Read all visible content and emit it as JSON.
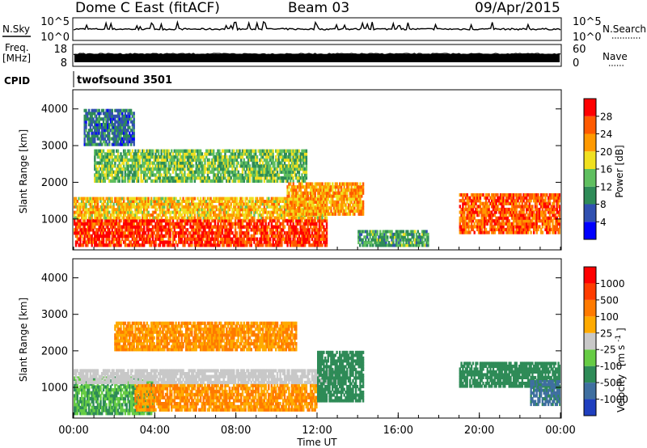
{
  "header": {
    "station": "Dome C East (fitACF)",
    "beam": "Beam 03",
    "date": "09/Apr/2015"
  },
  "nsky_panel": {
    "left_label": "N.Sky",
    "right_label": "N.Search",
    "left_ticks": [
      "10^5",
      "10^0"
    ],
    "right_ticks": [
      "10^5",
      "10^0"
    ]
  },
  "freq_panel": {
    "left_label_1": "Freq.",
    "left_label_2": "[MHz]",
    "right_label": "Nave",
    "left_ticks": [
      "18",
      "8"
    ],
    "right_ticks": [
      "60",
      "0"
    ]
  },
  "cpid": {
    "label": "CPID",
    "value": "twofsound 3501"
  },
  "chart_data": [
    {
      "type": "heatmap",
      "name": "power",
      "ylabel": "Slant Range [km]",
      "xlabel": "",
      "yticks": [
        "1000",
        "2000",
        "3000",
        "4000"
      ],
      "ylim": [
        180,
        4500
      ],
      "xlim": [
        "00:00",
        "24:00"
      ],
      "colorbar": {
        "label": "Power [dB]",
        "ticks": [
          "4",
          "8",
          "12",
          "16",
          "20",
          "24",
          "28"
        ],
        "colors": [
          "#0000ff",
          "#3050b0",
          "#2e8b57",
          "#5fbf5f",
          "#f0e020",
          "#ff9900",
          "#ff5a00",
          "#ff0000"
        ]
      },
      "regions": [
        {
          "t0": 0.0,
          "t1": 12.5,
          "r0": 250,
          "r1": 1000,
          "value": 28
        },
        {
          "t0": 0.0,
          "t1": 12.5,
          "r0": 1000,
          "r1": 1600,
          "value": 20
        },
        {
          "t0": 1.0,
          "t1": 11.5,
          "r0": 2000,
          "r1": 2900,
          "value": 14
        },
        {
          "t0": 10.5,
          "t1": 14.3,
          "r0": 1100,
          "r1": 2000,
          "value": 22
        },
        {
          "t0": 14.0,
          "t1": 17.5,
          "r0": 250,
          "r1": 700,
          "value": 12
        },
        {
          "t0": 19.0,
          "t1": 24.0,
          "r0": 600,
          "r1": 1700,
          "value": 26
        },
        {
          "t0": 0.5,
          "t1": 3.0,
          "r0": 3000,
          "r1": 4000,
          "value": 8
        }
      ]
    },
    {
      "type": "heatmap",
      "name": "velocity",
      "ylabel": "Slant Range [km]",
      "xlabel": "Time UT",
      "yticks": [
        "1000",
        "2000",
        "3000",
        "4000"
      ],
      "ylim": [
        180,
        4500
      ],
      "xlim": [
        "00:00",
        "24:00"
      ],
      "xticks": [
        "00:00",
        "04:00",
        "08:00",
        "12:00",
        "16:00",
        "20:00",
        "00:00"
      ],
      "colorbar": {
        "label": "Velocity",
        "unit": "[m s",
        "unit_exp": "-1",
        "unit_end": "]",
        "ticks": [
          "1000",
          "500",
          "100",
          "25",
          "-25",
          "-100",
          "-500",
          "-1000"
        ],
        "colors": [
          "#1f3fbf",
          "#3f6fa0",
          "#2e8b57",
          "#66cc44",
          "#c8c8c8",
          "#ffaa00",
          "#ff7a00",
          "#ff3c00",
          "#ff0000"
        ]
      },
      "regions": [
        {
          "t0": 0.0,
          "t1": 4.0,
          "r0": 250,
          "r1": 1300,
          "value": 100
        },
        {
          "t0": 3.0,
          "t1": 12.0,
          "r0": 350,
          "r1": 1100,
          "value": -100
        },
        {
          "t0": 0.0,
          "t1": 13.0,
          "r0": 1100,
          "r1": 1500,
          "value": 0
        },
        {
          "t0": 2.0,
          "t1": 11.0,
          "r0": 2000,
          "r1": 2800,
          "value": -100
        },
        {
          "t0": 12.0,
          "t1": 14.3,
          "r0": 600,
          "r1": 2000,
          "value": 300
        },
        {
          "t0": 19.0,
          "t1": 24.0,
          "r0": 1000,
          "r1": 1700,
          "value": 150
        },
        {
          "t0": 22.5,
          "t1": 24.0,
          "r0": 500,
          "r1": 1200,
          "value": 600
        }
      ]
    }
  ]
}
